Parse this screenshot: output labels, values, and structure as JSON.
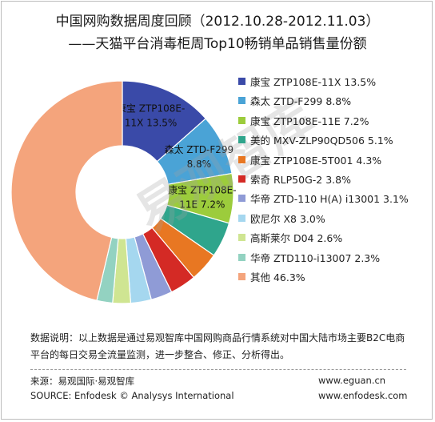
{
  "header": {
    "title_line1": "中国网购数据周度回顾（2012.10.28-2012.11.03）",
    "title_line2": "——天猫平台消毒柜周Top10畅销单品销售量份额"
  },
  "chart_data": {
    "type": "donut",
    "title": "中国网购数据周度回顾（2012.10.28-2012.11.03） ——天猫平台消毒柜周Top10畅销单品销售量份额",
    "unit": "%",
    "legend_position": "right",
    "start_angle": "12 o'clock, clockwise",
    "slices": [
      {
        "name": "康宝 ZTP108E-11X",
        "value": 13.5,
        "color": "#3a4aa8",
        "label_line1": "康宝 ZTP108E-",
        "label_line2": "11X 13.5%"
      },
      {
        "name": "森太 ZTD-F299",
        "value": 8.8,
        "color": "#4aa3d6",
        "label_line1": "森太 ZTD-F299",
        "label_line2": "8.8%"
      },
      {
        "name": "康宝 ZTP108E-11E",
        "value": 7.2,
        "color": "#9ccc3c",
        "label_line1": "康宝 ZTP108E-",
        "label_line2": "11E 7.2%"
      },
      {
        "name": "美的 MXV-ZLP90QD506",
        "value": 5.1,
        "color": "#2fa58c",
        "label_line1": "",
        "label_line2": ""
      },
      {
        "name": "康宝 ZTP108E-5T001",
        "value": 4.3,
        "color": "#e87722",
        "label_line1": "",
        "label_line2": ""
      },
      {
        "name": "索奇 RLP50G-2",
        "value": 3.8,
        "color": "#d42a25",
        "label_line1": "",
        "label_line2": ""
      },
      {
        "name": "华帝 ZTD-110 H(A) i13001",
        "value": 3.1,
        "color": "#8f9bd6",
        "label_line1": "",
        "label_line2": ""
      },
      {
        "name": "欧尼尔 X8",
        "value": 3.0,
        "color": "#a5d7ef",
        "label_line1": "",
        "label_line2": ""
      },
      {
        "name": "高斯莱尔 D04",
        "value": 2.6,
        "color": "#cfe592",
        "label_line1": "",
        "label_line2": ""
      },
      {
        "name": "华帝 ZTD110-i13007",
        "value": 2.3,
        "color": "#93d2c1",
        "label_line1": "",
        "label_line2": ""
      },
      {
        "name": "其他",
        "value": 46.3,
        "color": "#f4a47c",
        "label_line1": "",
        "label_line2": ""
      }
    ]
  },
  "legend": {
    "items": [
      "康宝 ZTP108E-11X 13.5%",
      "森太 ZTD-F299 8.8%",
      "康宝 ZTP108E-11E 7.2%",
      "美的 MXV-ZLP90QD506 5.1%",
      "康宝 ZTP108E-5T001 4.3%",
      "索奇 RLP50G-2 3.8%",
      "华帝 ZTD-110 H(A) i13001 3.1%",
      "欧尼尔 X8 3.0%",
      "高斯莱尔 D04 2.6%",
      "华帝 ZTD110-i13007 2.3%",
      "其他 46.3%"
    ]
  },
  "note": {
    "line1": "数据说明：以上数据是通过易观智库中国网购商品行情系统对中国大陆市场主要B2C电商",
    "line2": "平台的每日交易全流量监测，进一步整合、修正、分析得出。"
  },
  "footer": {
    "source_cn": "来源：易观国际·易观智库",
    "source_en": "SOURCE: Enfodesk © Analysys International",
    "website1": "www.eguan.cn",
    "website2": "www.enfodesk.com"
  },
  "watermark": {
    "text": "易观智库"
  }
}
